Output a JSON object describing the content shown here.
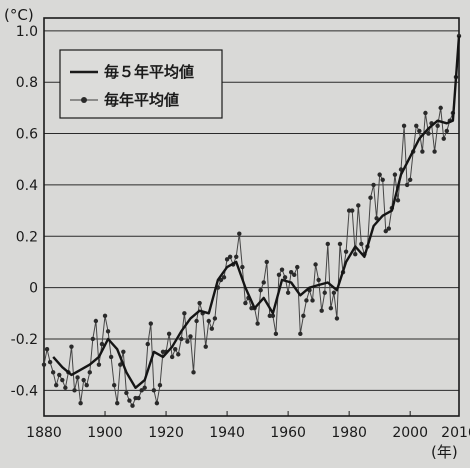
{
  "chart_data": {
    "type": "line",
    "y_unit_label": "(°C)",
    "x_unit_label": "(年)",
    "xlim": [
      1880,
      2016
    ],
    "ylim": [
      -0.5,
      1.05
    ],
    "grid": "horizontal",
    "legend_position": "top-left",
    "x_tick_labels": [
      "1880",
      "1900",
      "1920",
      "1940",
      "1960",
      "1980",
      "2000",
      "2016"
    ],
    "x_ticks": [
      1880,
      1900,
      1920,
      1940,
      1960,
      1980,
      2000,
      2016
    ],
    "y_tick_labels": [
      "-0.4",
      "-0.2",
      "0",
      "0.2",
      "0.4",
      "0.6",
      "0.8",
      "1.0"
    ],
    "y_ticks": [
      -0.4,
      -0.2,
      0,
      0.2,
      0.4,
      0.6,
      0.8,
      1.0
    ],
    "legend": [
      {
        "label": "毎５年平均値",
        "marker": "none"
      },
      {
        "label": "毎年平均値",
        "marker": "dot"
      }
    ],
    "series": [
      {
        "name": "毎５年平均値",
        "x": [
          1883,
          1886,
          1889,
          1892,
          1895,
          1898,
          1901,
          1904,
          1907,
          1910,
          1913,
          1916,
          1919,
          1922,
          1925,
          1928,
          1931,
          1934,
          1937,
          1940,
          1943,
          1946,
          1949,
          1952,
          1955,
          1958,
          1961,
          1964,
          1967,
          1970,
          1973,
          1976,
          1979,
          1982,
          1985,
          1988,
          1991,
          1994,
          1997,
          2000,
          2003,
          2006,
          2009,
          2012,
          2014,
          2016
        ],
        "values": [
          -0.27,
          -0.31,
          -0.34,
          -0.32,
          -0.3,
          -0.27,
          -0.2,
          -0.24,
          -0.33,
          -0.39,
          -0.36,
          -0.25,
          -0.27,
          -0.23,
          -0.17,
          -0.12,
          -0.09,
          -0.1,
          0.03,
          0.08,
          0.1,
          0.0,
          -0.08,
          -0.04,
          -0.1,
          0.03,
          0.02,
          -0.03,
          0.0,
          0.01,
          0.02,
          -0.01,
          0.1,
          0.16,
          0.12,
          0.24,
          0.28,
          0.3,
          0.44,
          0.51,
          0.58,
          0.62,
          0.65,
          0.64,
          0.65,
          0.98
        ]
      },
      {
        "name": "毎年平均値",
        "x": [
          1880,
          1881,
          1882,
          1883,
          1884,
          1885,
          1886,
          1887,
          1888,
          1889,
          1890,
          1891,
          1892,
          1893,
          1894,
          1895,
          1896,
          1897,
          1898,
          1899,
          1900,
          1901,
          1902,
          1903,
          1904,
          1905,
          1906,
          1907,
          1908,
          1909,
          1910,
          1911,
          1912,
          1913,
          1914,
          1915,
          1916,
          1917,
          1918,
          1919,
          1920,
          1921,
          1922,
          1923,
          1924,
          1925,
          1926,
          1927,
          1928,
          1929,
          1930,
          1931,
          1932,
          1933,
          1934,
          1935,
          1936,
          1937,
          1938,
          1939,
          1940,
          1941,
          1942,
          1943,
          1944,
          1945,
          1946,
          1947,
          1948,
          1949,
          1950,
          1951,
          1952,
          1953,
          1954,
          1955,
          1956,
          1957,
          1958,
          1959,
          1960,
          1961,
          1962,
          1963,
          1964,
          1965,
          1966,
          1967,
          1968,
          1969,
          1970,
          1971,
          1972,
          1973,
          1974,
          1975,
          1976,
          1977,
          1978,
          1979,
          1980,
          1981,
          1982,
          1983,
          1984,
          1985,
          1986,
          1987,
          1988,
          1989,
          1990,
          1991,
          1992,
          1993,
          1994,
          1995,
          1996,
          1997,
          1998,
          1999,
          2000,
          2001,
          2002,
          2003,
          2004,
          2005,
          2006,
          2007,
          2008,
          2009,
          2010,
          2011,
          2012,
          2013,
          2014,
          2015,
          2016
        ],
        "values": [
          -0.3,
          -0.24,
          -0.29,
          -0.33,
          -0.38,
          -0.34,
          -0.36,
          -0.39,
          -0.33,
          -0.23,
          -0.4,
          -0.35,
          -0.45,
          -0.36,
          -0.38,
          -0.33,
          -0.2,
          -0.13,
          -0.3,
          -0.22,
          -0.11,
          -0.17,
          -0.27,
          -0.38,
          -0.45,
          -0.3,
          -0.25,
          -0.41,
          -0.44,
          -0.46,
          -0.43,
          -0.43,
          -0.4,
          -0.39,
          -0.22,
          -0.14,
          -0.4,
          -0.45,
          -0.38,
          -0.25,
          -0.25,
          -0.18,
          -0.27,
          -0.24,
          -0.26,
          -0.2,
          -0.1,
          -0.21,
          -0.19,
          -0.33,
          -0.13,
          -0.06,
          -0.1,
          -0.23,
          -0.13,
          -0.16,
          -0.12,
          0.0,
          0.03,
          0.04,
          0.11,
          0.12,
          0.09,
          0.12,
          0.21,
          0.08,
          -0.06,
          -0.04,
          -0.08,
          -0.08,
          -0.14,
          -0.01,
          0.02,
          0.1,
          -0.11,
          -0.11,
          -0.18,
          0.05,
          0.07,
          0.04,
          -0.02,
          0.06,
          0.05,
          0.08,
          -0.18,
          -0.11,
          -0.05,
          -0.01,
          -0.05,
          0.09,
          0.03,
          -0.09,
          -0.02,
          0.17,
          -0.08,
          -0.02,
          -0.12,
          0.17,
          0.06,
          0.14,
          0.3,
          0.3,
          0.13,
          0.32,
          0.17,
          0.13,
          0.16,
          0.35,
          0.4,
          0.27,
          0.44,
          0.42,
          0.22,
          0.23,
          0.31,
          0.44,
          0.34,
          0.46,
          0.63,
          0.4,
          0.42,
          0.53,
          0.63,
          0.61,
          0.53,
          0.68,
          0.6,
          0.64,
          0.53,
          0.63,
          0.7,
          0.58,
          0.61,
          0.65,
          0.68,
          0.82,
          0.98
        ]
      }
    ]
  }
}
